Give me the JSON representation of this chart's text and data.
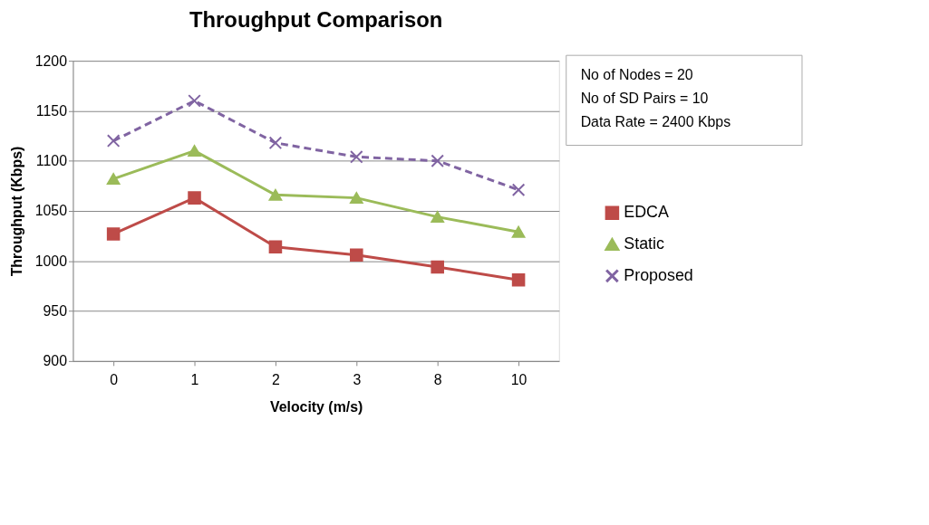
{
  "chart_data": {
    "type": "line",
    "title": "Throughput Comparison",
    "xlabel": "Velocity (m/s)",
    "ylabel": "Throughput (Kbps)",
    "categories": [
      "0",
      "1",
      "2",
      "3",
      "8",
      "10"
    ],
    "series": [
      {
        "name": "EDCA",
        "color": "#be4b48",
        "marker": "square",
        "line_style": "solid",
        "values": [
          1027,
          1063,
          1014,
          1006,
          994,
          981
        ]
      },
      {
        "name": "Static",
        "color": "#9bbb59",
        "marker": "triangle",
        "line_style": "solid",
        "values": [
          1082,
          1110,
          1066,
          1063,
          1044,
          1029
        ]
      },
      {
        "name": "Proposed",
        "color": "#8064a2",
        "marker": "cross",
        "line_style": "dashed",
        "values": [
          1120,
          1160,
          1118,
          1104,
          1100,
          1071
        ]
      }
    ],
    "ylim": [
      900,
      1200
    ],
    "yticks": [
      900,
      950,
      1000,
      1050,
      1100,
      1150,
      1200
    ],
    "grid": "y",
    "legend": "right",
    "annotations": [
      "No of Nodes = 20",
      "No of SD Pairs = 10",
      "Data Rate = 2400 Kbps"
    ]
  }
}
